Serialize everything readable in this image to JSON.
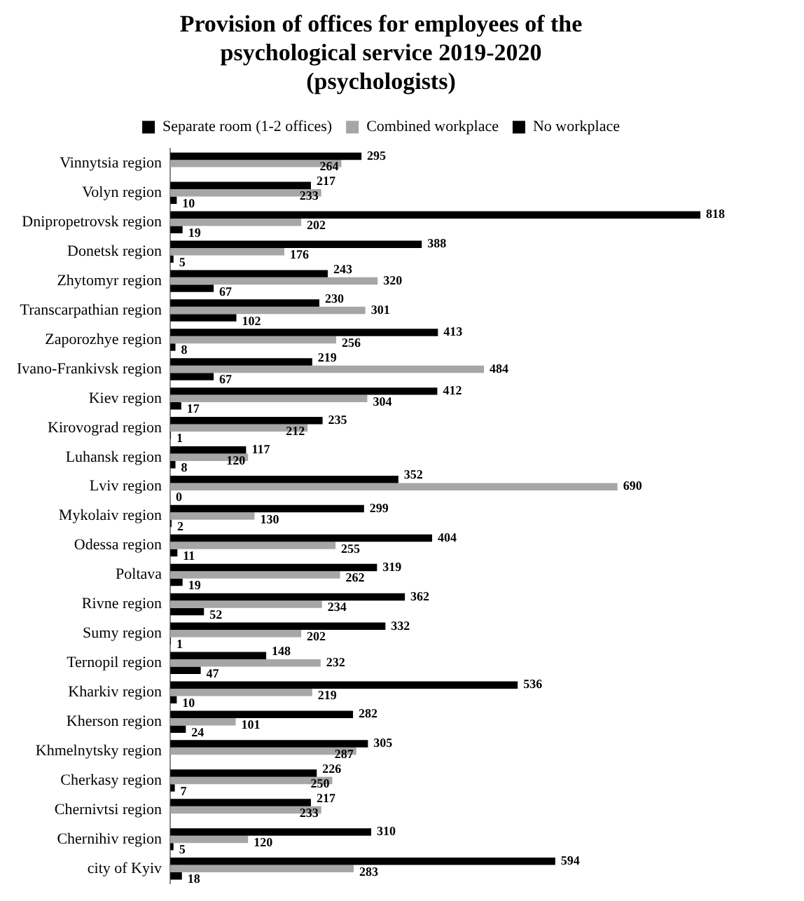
{
  "chart_data": {
    "type": "bar",
    "orientation": "horizontal",
    "title": "Provision of offices for employees of the psychological service 2019-2020 (psychologists)",
    "categories": [
      "Vinnytsia region",
      "Volyn region",
      "Dnipropetrovsk region",
      "Donetsk region",
      "Zhytomyr region",
      "Transcarpathian region",
      "Zaporozhye region",
      "Ivano-Frankivsk region",
      "Kiev region",
      "Kirovograd region",
      "Luhansk region",
      "Lviv region",
      "Mykolaiv region",
      "Odessa region",
      "Poltava",
      "Rivne region",
      "Sumy region",
      "Ternopil region",
      "Kharkiv region",
      "Kherson region",
      "Khmelnytsky region",
      "Cherkasy region",
      "Chernivtsi region",
      "Chernihiv region",
      "city of Kyiv"
    ],
    "series": [
      {
        "name": "Separate room (1-2 offices)",
        "color": "#000000",
        "values": [
          295,
          217,
          818,
          388,
          243,
          230,
          413,
          219,
          412,
          235,
          117,
          352,
          299,
          404,
          319,
          362,
          332,
          148,
          536,
          282,
          305,
          226,
          217,
          310,
          594
        ]
      },
      {
        "name": "Combined workplace",
        "color": "#a6a6a6",
        "values": [
          264,
          233,
          202,
          176,
          320,
          301,
          256,
          484,
          304,
          212,
          120,
          690,
          130,
          255,
          262,
          234,
          202,
          232,
          219,
          101,
          287,
          250,
          233,
          120,
          283
        ]
      },
      {
        "name": "No workplace",
        "color": "#000000",
        "values": [
          null,
          10,
          19,
          5,
          67,
          102,
          8,
          67,
          17,
          1,
          8,
          0,
          2,
          11,
          19,
          52,
          1,
          47,
          10,
          24,
          null,
          7,
          null,
          5,
          18
        ]
      }
    ],
    "data_labels": true,
    "legend": "top",
    "grid": false
  }
}
